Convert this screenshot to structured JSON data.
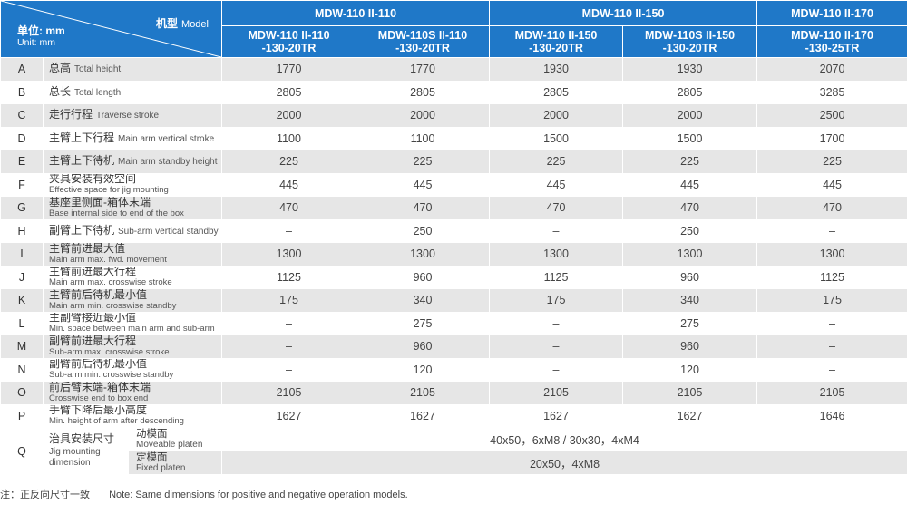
{
  "header": {
    "model_label_zh": "机型",
    "model_label_en": "Model",
    "unit_label_zh": "单位: mm",
    "unit_label_en": "Unit: mm",
    "groups": [
      "MDW-110 II-110",
      "MDW-110 II-150",
      "MDW-110 II-170"
    ],
    "models": [
      [
        "MDW-110 II-110",
        "-130-20TR"
      ],
      [
        "MDW-110S II-110",
        "-130-20TR"
      ],
      [
        "MDW-110 II-150",
        "-130-20TR"
      ],
      [
        "MDW-110S II-150",
        "-130-20TR"
      ],
      [
        "MDW-110 II-170",
        "-130-25TR"
      ]
    ]
  },
  "rows": [
    {
      "letter": "A",
      "zh": "总高",
      "en": "Total height",
      "layout": "inline",
      "values": [
        "1770",
        "1770",
        "1930",
        "1930",
        "2070"
      ]
    },
    {
      "letter": "B",
      "zh": "总长",
      "en": "Total length",
      "layout": "inline",
      "values": [
        "2805",
        "2805",
        "2805",
        "2805",
        "3285"
      ]
    },
    {
      "letter": "C",
      "zh": "走行行程",
      "en": "Traverse stroke",
      "layout": "inline",
      "values": [
        "2000",
        "2000",
        "2000",
        "2000",
        "2500"
      ]
    },
    {
      "letter": "D",
      "zh": "主臂上下行程",
      "en": "Main arm vertical stroke",
      "layout": "inline",
      "values": [
        "1100",
        "1100",
        "1500",
        "1500",
        "1700"
      ]
    },
    {
      "letter": "E",
      "zh": "主臂上下待机",
      "en": "Main arm standby height",
      "layout": "inline",
      "values": [
        "225",
        "225",
        "225",
        "225",
        "225"
      ]
    },
    {
      "letter": "F",
      "zh": "夹具安装有效空间",
      "en": "Effective space for jig mounting",
      "layout": "stack",
      "values": [
        "445",
        "445",
        "445",
        "445",
        "445"
      ]
    },
    {
      "letter": "G",
      "zh": "基座里侧面-箱体末端",
      "en": "Base internal side to end of the box",
      "layout": "stack",
      "values": [
        "470",
        "470",
        "470",
        "470",
        "470"
      ]
    },
    {
      "letter": "H",
      "zh": "副臂上下待机",
      "en": "Sub-arm vertical standby",
      "layout": "inline",
      "values": [
        "–",
        "250",
        "–",
        "250",
        "–"
      ]
    },
    {
      "letter": "I",
      "zh": "主臂前进最大值",
      "en": "Main arm max. fwd. movement",
      "layout": "stack",
      "values": [
        "1300",
        "1300",
        "1300",
        "1300",
        "1300"
      ]
    },
    {
      "letter": "J",
      "zh": "主臂前进最大行程",
      "en": "Main arm max. crosswise stroke",
      "layout": "stack",
      "values": [
        "1125",
        "960",
        "1125",
        "960",
        "1125"
      ]
    },
    {
      "letter": "K",
      "zh": "主臂前后待机最小值",
      "en": "Main arm min. crosswise standby",
      "layout": "stack",
      "values": [
        "175",
        "340",
        "175",
        "340",
        "175"
      ]
    },
    {
      "letter": "L",
      "zh": "主副臂接近最小值",
      "en": "Min. space between main arm and sub-arm",
      "layout": "stack",
      "values": [
        "–",
        "275",
        "–",
        "275",
        "–"
      ]
    },
    {
      "letter": "M",
      "zh": "副臂前进最大行程",
      "en": "Sub-arm max. crosswise stroke",
      "layout": "stack",
      "values": [
        "–",
        "960",
        "–",
        "960",
        "–"
      ]
    },
    {
      "letter": "N",
      "zh": "副臂前后待机最小值",
      "en": "Sub-arm min. crosswise standby",
      "layout": "stack",
      "values": [
        "–",
        "120",
        "–",
        "120",
        "–"
      ]
    },
    {
      "letter": "O",
      "zh": "前后臂末端-箱体末端",
      "en": "Crosswise end to box end",
      "layout": "stack",
      "values": [
        "2105",
        "2105",
        "2105",
        "2105",
        "2105"
      ]
    },
    {
      "letter": "P",
      "zh": "手臂下降后最小高度",
      "en": "Min. height of arm after descending",
      "layout": "stack",
      "values": [
        "1627",
        "1627",
        "1627",
        "1627",
        "1646"
      ]
    }
  ],
  "q_row": {
    "letter": "Q",
    "zh": "治具安装尺寸",
    "en_line1": "Jig mounting",
    "en_line2": "dimension",
    "moveable": {
      "zh": "动模面",
      "en": "Moveable platen",
      "value": "40x50，6xM8 / 30x30，4xM4"
    },
    "fixed": {
      "zh": "定模面",
      "en": "Fixed platen",
      "value": "20x50，4xM8"
    }
  },
  "footnote": {
    "zh": "注：正反向尺寸一致",
    "en": "Note: Same dimensions for positive and negative operation models."
  },
  "colors": {
    "header_blue": "#1f78c8",
    "row_gray": "#e6e6e6"
  }
}
